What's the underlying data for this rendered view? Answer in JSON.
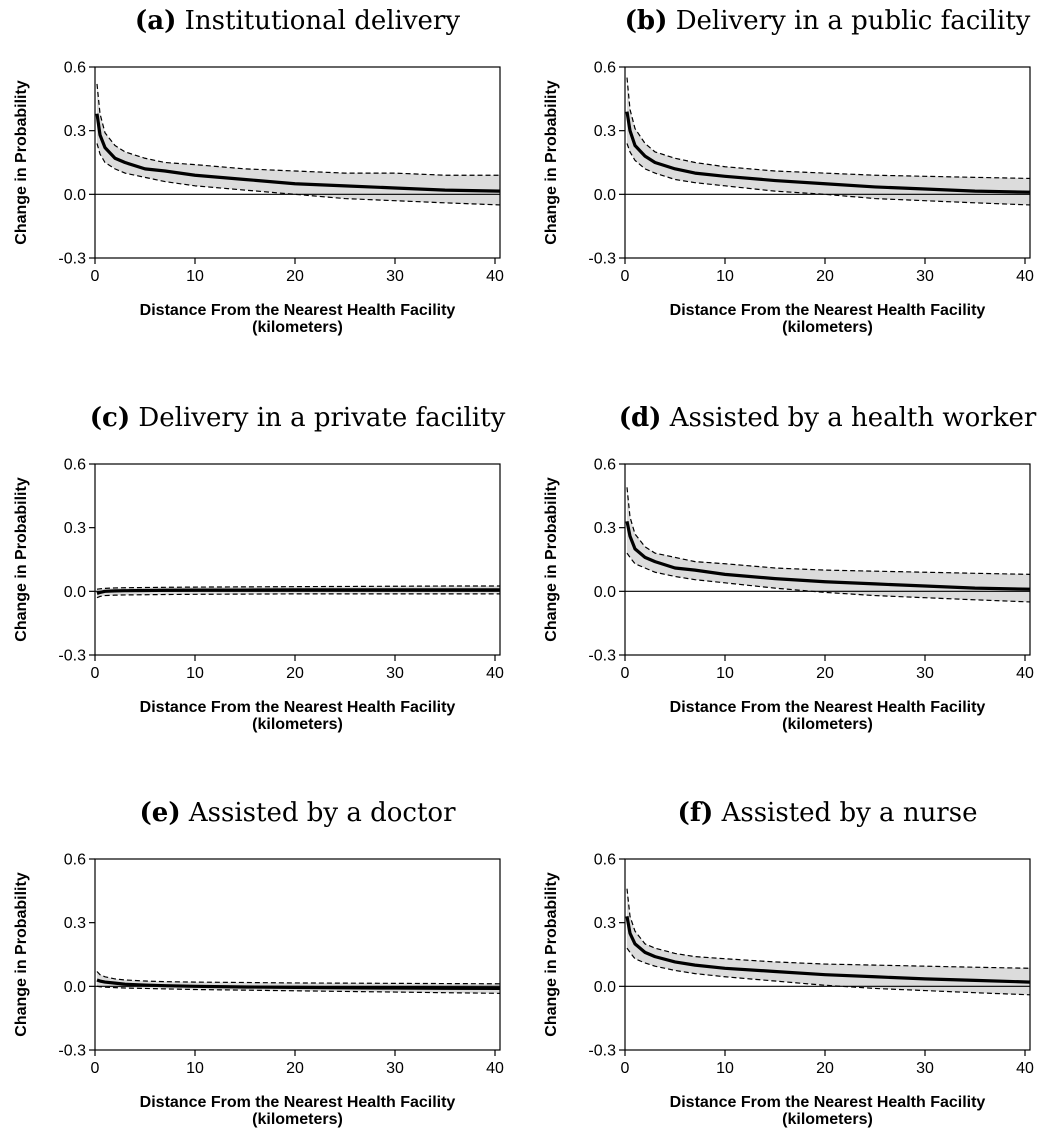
{
  "chart_data": [
    {
      "type": "line",
      "panel_label": "(a)",
      "title": "Institutional delivery",
      "xlabel_line1": "Distance From the Nearest Health Facility",
      "xlabel_line2": "(kilometers)",
      "ylabel": "Change in Probability",
      "xlim": [
        0,
        40.5
      ],
      "ylim": [
        -0.3,
        0.6
      ],
      "xticks": [
        "0",
        "10",
        "20",
        "30",
        "40"
      ],
      "yticks": [
        "-0.3",
        "0.0",
        "0.3",
        "0.6"
      ],
      "reference_line": 0.0,
      "x": [
        0.2,
        0.5,
        1,
        2,
        3,
        5,
        7,
        10,
        15,
        20,
        25,
        30,
        35,
        40.5
      ],
      "series": [
        {
          "role": "upper_ci",
          "style": "dashed",
          "values": [
            0.52,
            0.38,
            0.29,
            0.23,
            0.2,
            0.17,
            0.15,
            0.14,
            0.12,
            0.11,
            0.1,
            0.1,
            0.09,
            0.09
          ]
        },
        {
          "role": "estimate",
          "style": "solid",
          "values": [
            0.38,
            0.28,
            0.22,
            0.17,
            0.15,
            0.12,
            0.11,
            0.09,
            0.07,
            0.05,
            0.04,
            0.03,
            0.02,
            0.015
          ]
        },
        {
          "role": "lower_ci",
          "style": "dashed",
          "values": [
            0.24,
            0.19,
            0.15,
            0.12,
            0.1,
            0.08,
            0.06,
            0.04,
            0.02,
            0.0,
            -0.02,
            -0.03,
            -0.04,
            -0.05
          ]
        }
      ]
    },
    {
      "type": "line",
      "panel_label": "(b)",
      "title": "Delivery in a public facility",
      "xlabel_line1": "Distance From the Nearest Health Facility",
      "xlabel_line2": "(kilometers)",
      "ylabel": "Change in Probability",
      "xlim": [
        0,
        40.5
      ],
      "ylim": [
        -0.3,
        0.6
      ],
      "xticks": [
        "0",
        "10",
        "20",
        "30",
        "40"
      ],
      "yticks": [
        "-0.3",
        "0.0",
        "0.3",
        "0.6"
      ],
      "reference_line": 0.0,
      "x": [
        0.2,
        0.5,
        1,
        2,
        3,
        5,
        7,
        10,
        15,
        20,
        25,
        30,
        35,
        40.5
      ],
      "series": [
        {
          "role": "upper_ci",
          "style": "dashed",
          "values": [
            0.55,
            0.4,
            0.31,
            0.24,
            0.2,
            0.17,
            0.15,
            0.13,
            0.11,
            0.1,
            0.09,
            0.085,
            0.08,
            0.075
          ]
        },
        {
          "role": "estimate",
          "style": "solid",
          "values": [
            0.39,
            0.3,
            0.23,
            0.18,
            0.15,
            0.12,
            0.1,
            0.085,
            0.065,
            0.05,
            0.035,
            0.025,
            0.015,
            0.01
          ]
        },
        {
          "role": "lower_ci",
          "style": "dashed",
          "values": [
            0.24,
            0.2,
            0.16,
            0.12,
            0.1,
            0.07,
            0.055,
            0.04,
            0.015,
            0.0,
            -0.02,
            -0.03,
            -0.04,
            -0.05
          ]
        }
      ]
    },
    {
      "type": "line",
      "panel_label": "(c)",
      "title": "Delivery in a private facility",
      "xlabel_line1": "Distance From the Nearest Health Facility",
      "xlabel_line2": "(kilometers)",
      "ylabel": "Change in Probability",
      "xlim": [
        0,
        40.5
      ],
      "ylim": [
        -0.3,
        0.6
      ],
      "xticks": [
        "0",
        "10",
        "20",
        "30",
        "40"
      ],
      "yticks": [
        "-0.3",
        "0.0",
        "0.3",
        "0.6"
      ],
      "reference_line": 0.0,
      "x": [
        0.2,
        0.5,
        1,
        2,
        3,
        5,
        7,
        10,
        15,
        20,
        25,
        30,
        35,
        40.5
      ],
      "series": [
        {
          "role": "upper_ci",
          "style": "dashed",
          "values": [
            0.01,
            0.012,
            0.014,
            0.016,
            0.017,
            0.018,
            0.019,
            0.02,
            0.021,
            0.022,
            0.023,
            0.024,
            0.025,
            0.025
          ]
        },
        {
          "role": "estimate",
          "style": "solid",
          "values": [
            -0.01,
            -0.005,
            0.0,
            0.002,
            0.003,
            0.004,
            0.005,
            0.006,
            0.006,
            0.007,
            0.007,
            0.007,
            0.007,
            0.007
          ]
        },
        {
          "role": "lower_ci",
          "style": "dashed",
          "values": [
            -0.03,
            -0.024,
            -0.02,
            -0.018,
            -0.017,
            -0.016,
            -0.015,
            -0.014,
            -0.013,
            -0.012,
            -0.012,
            -0.012,
            -0.012,
            -0.012
          ]
        }
      ]
    },
    {
      "type": "line",
      "panel_label": "(d)",
      "title": "Assisted by a health worker",
      "xlabel_line1": "Distance From the Nearest Health Facility",
      "xlabel_line2": "(kilometers)",
      "ylabel": "Change in Probability",
      "xlim": [
        0,
        40.5
      ],
      "ylim": [
        -0.3,
        0.6
      ],
      "xticks": [
        "0",
        "10",
        "20",
        "30",
        "40"
      ],
      "yticks": [
        "-0.3",
        "0.0",
        "0.3",
        "0.6"
      ],
      "reference_line": 0.0,
      "x": [
        0.2,
        0.5,
        1,
        2,
        3,
        5,
        7,
        10,
        15,
        20,
        25,
        30,
        35,
        40.5
      ],
      "series": [
        {
          "role": "upper_ci",
          "style": "dashed",
          "values": [
            0.49,
            0.35,
            0.27,
            0.21,
            0.18,
            0.16,
            0.14,
            0.13,
            0.11,
            0.1,
            0.095,
            0.09,
            0.085,
            0.08
          ]
        },
        {
          "role": "estimate",
          "style": "solid",
          "values": [
            0.33,
            0.26,
            0.2,
            0.16,
            0.14,
            0.11,
            0.1,
            0.08,
            0.06,
            0.045,
            0.035,
            0.025,
            0.015,
            0.01
          ]
        },
        {
          "role": "lower_ci",
          "style": "dashed",
          "values": [
            0.18,
            0.16,
            0.13,
            0.11,
            0.09,
            0.07,
            0.055,
            0.04,
            0.015,
            -0.005,
            -0.02,
            -0.03,
            -0.04,
            -0.05
          ]
        }
      ]
    },
    {
      "type": "line",
      "panel_label": "(e)",
      "title": "Assisted by a doctor",
      "xlabel_line1": "Distance From the Nearest Health Facility",
      "xlabel_line2": "(kilometers)",
      "ylabel": "Change in Probability",
      "xlim": [
        0,
        40.5
      ],
      "ylim": [
        -0.3,
        0.6
      ],
      "xticks": [
        "0",
        "10",
        "20",
        "30",
        "40"
      ],
      "yticks": [
        "-0.3",
        "0.0",
        "0.3",
        "0.6"
      ],
      "reference_line": 0.0,
      "x": [
        0.2,
        0.5,
        1,
        2,
        3,
        5,
        7,
        10,
        15,
        20,
        25,
        30,
        35,
        40.5
      ],
      "series": [
        {
          "role": "upper_ci",
          "style": "dashed",
          "values": [
            0.07,
            0.055,
            0.045,
            0.035,
            0.03,
            0.025,
            0.022,
            0.02,
            0.018,
            0.016,
            0.015,
            0.014,
            0.013,
            0.012
          ]
        },
        {
          "role": "estimate",
          "style": "solid",
          "values": [
            0.03,
            0.025,
            0.02,
            0.015,
            0.01,
            0.006,
            0.003,
            0.0,
            -0.003,
            -0.005,
            -0.007,
            -0.008,
            -0.009,
            -0.01
          ]
        },
        {
          "role": "lower_ci",
          "style": "dashed",
          "values": [
            0.0,
            -0.002,
            -0.004,
            -0.006,
            -0.008,
            -0.01,
            -0.012,
            -0.015,
            -0.018,
            -0.021,
            -0.024,
            -0.027,
            -0.03,
            -0.033
          ]
        }
      ]
    },
    {
      "type": "line",
      "panel_label": "(f)",
      "title": "Assisted by a nurse",
      "xlabel_line1": "Distance From the Nearest Health Facility",
      "xlabel_line2": "(kilometers)",
      "ylabel": "Change in Probability",
      "xlim": [
        0,
        40.5
      ],
      "ylim": [
        -0.3,
        0.6
      ],
      "xticks": [
        "0",
        "10",
        "20",
        "30",
        "40"
      ],
      "yticks": [
        "-0.3",
        "0.0",
        "0.3",
        "0.6"
      ],
      "reference_line": 0.0,
      "x": [
        0.2,
        0.5,
        1,
        2,
        3,
        5,
        7,
        10,
        15,
        20,
        25,
        30,
        35,
        40.5
      ],
      "series": [
        {
          "role": "upper_ci",
          "style": "dashed",
          "values": [
            0.46,
            0.33,
            0.26,
            0.2,
            0.18,
            0.155,
            0.14,
            0.13,
            0.115,
            0.105,
            0.1,
            0.095,
            0.09,
            0.085
          ]
        },
        {
          "role": "estimate",
          "style": "solid",
          "values": [
            0.33,
            0.25,
            0.2,
            0.16,
            0.14,
            0.115,
            0.1,
            0.085,
            0.07,
            0.055,
            0.045,
            0.035,
            0.028,
            0.02
          ]
        },
        {
          "role": "lower_ci",
          "style": "dashed",
          "values": [
            0.18,
            0.16,
            0.13,
            0.11,
            0.095,
            0.075,
            0.06,
            0.045,
            0.025,
            0.005,
            -0.01,
            -0.02,
            -0.03,
            -0.04
          ]
        }
      ]
    }
  ],
  "colors": {
    "estimate_line": "#000000",
    "ci_band_fill": "#dcdcdc",
    "ci_line": "#000000",
    "axis": "#000000"
  }
}
